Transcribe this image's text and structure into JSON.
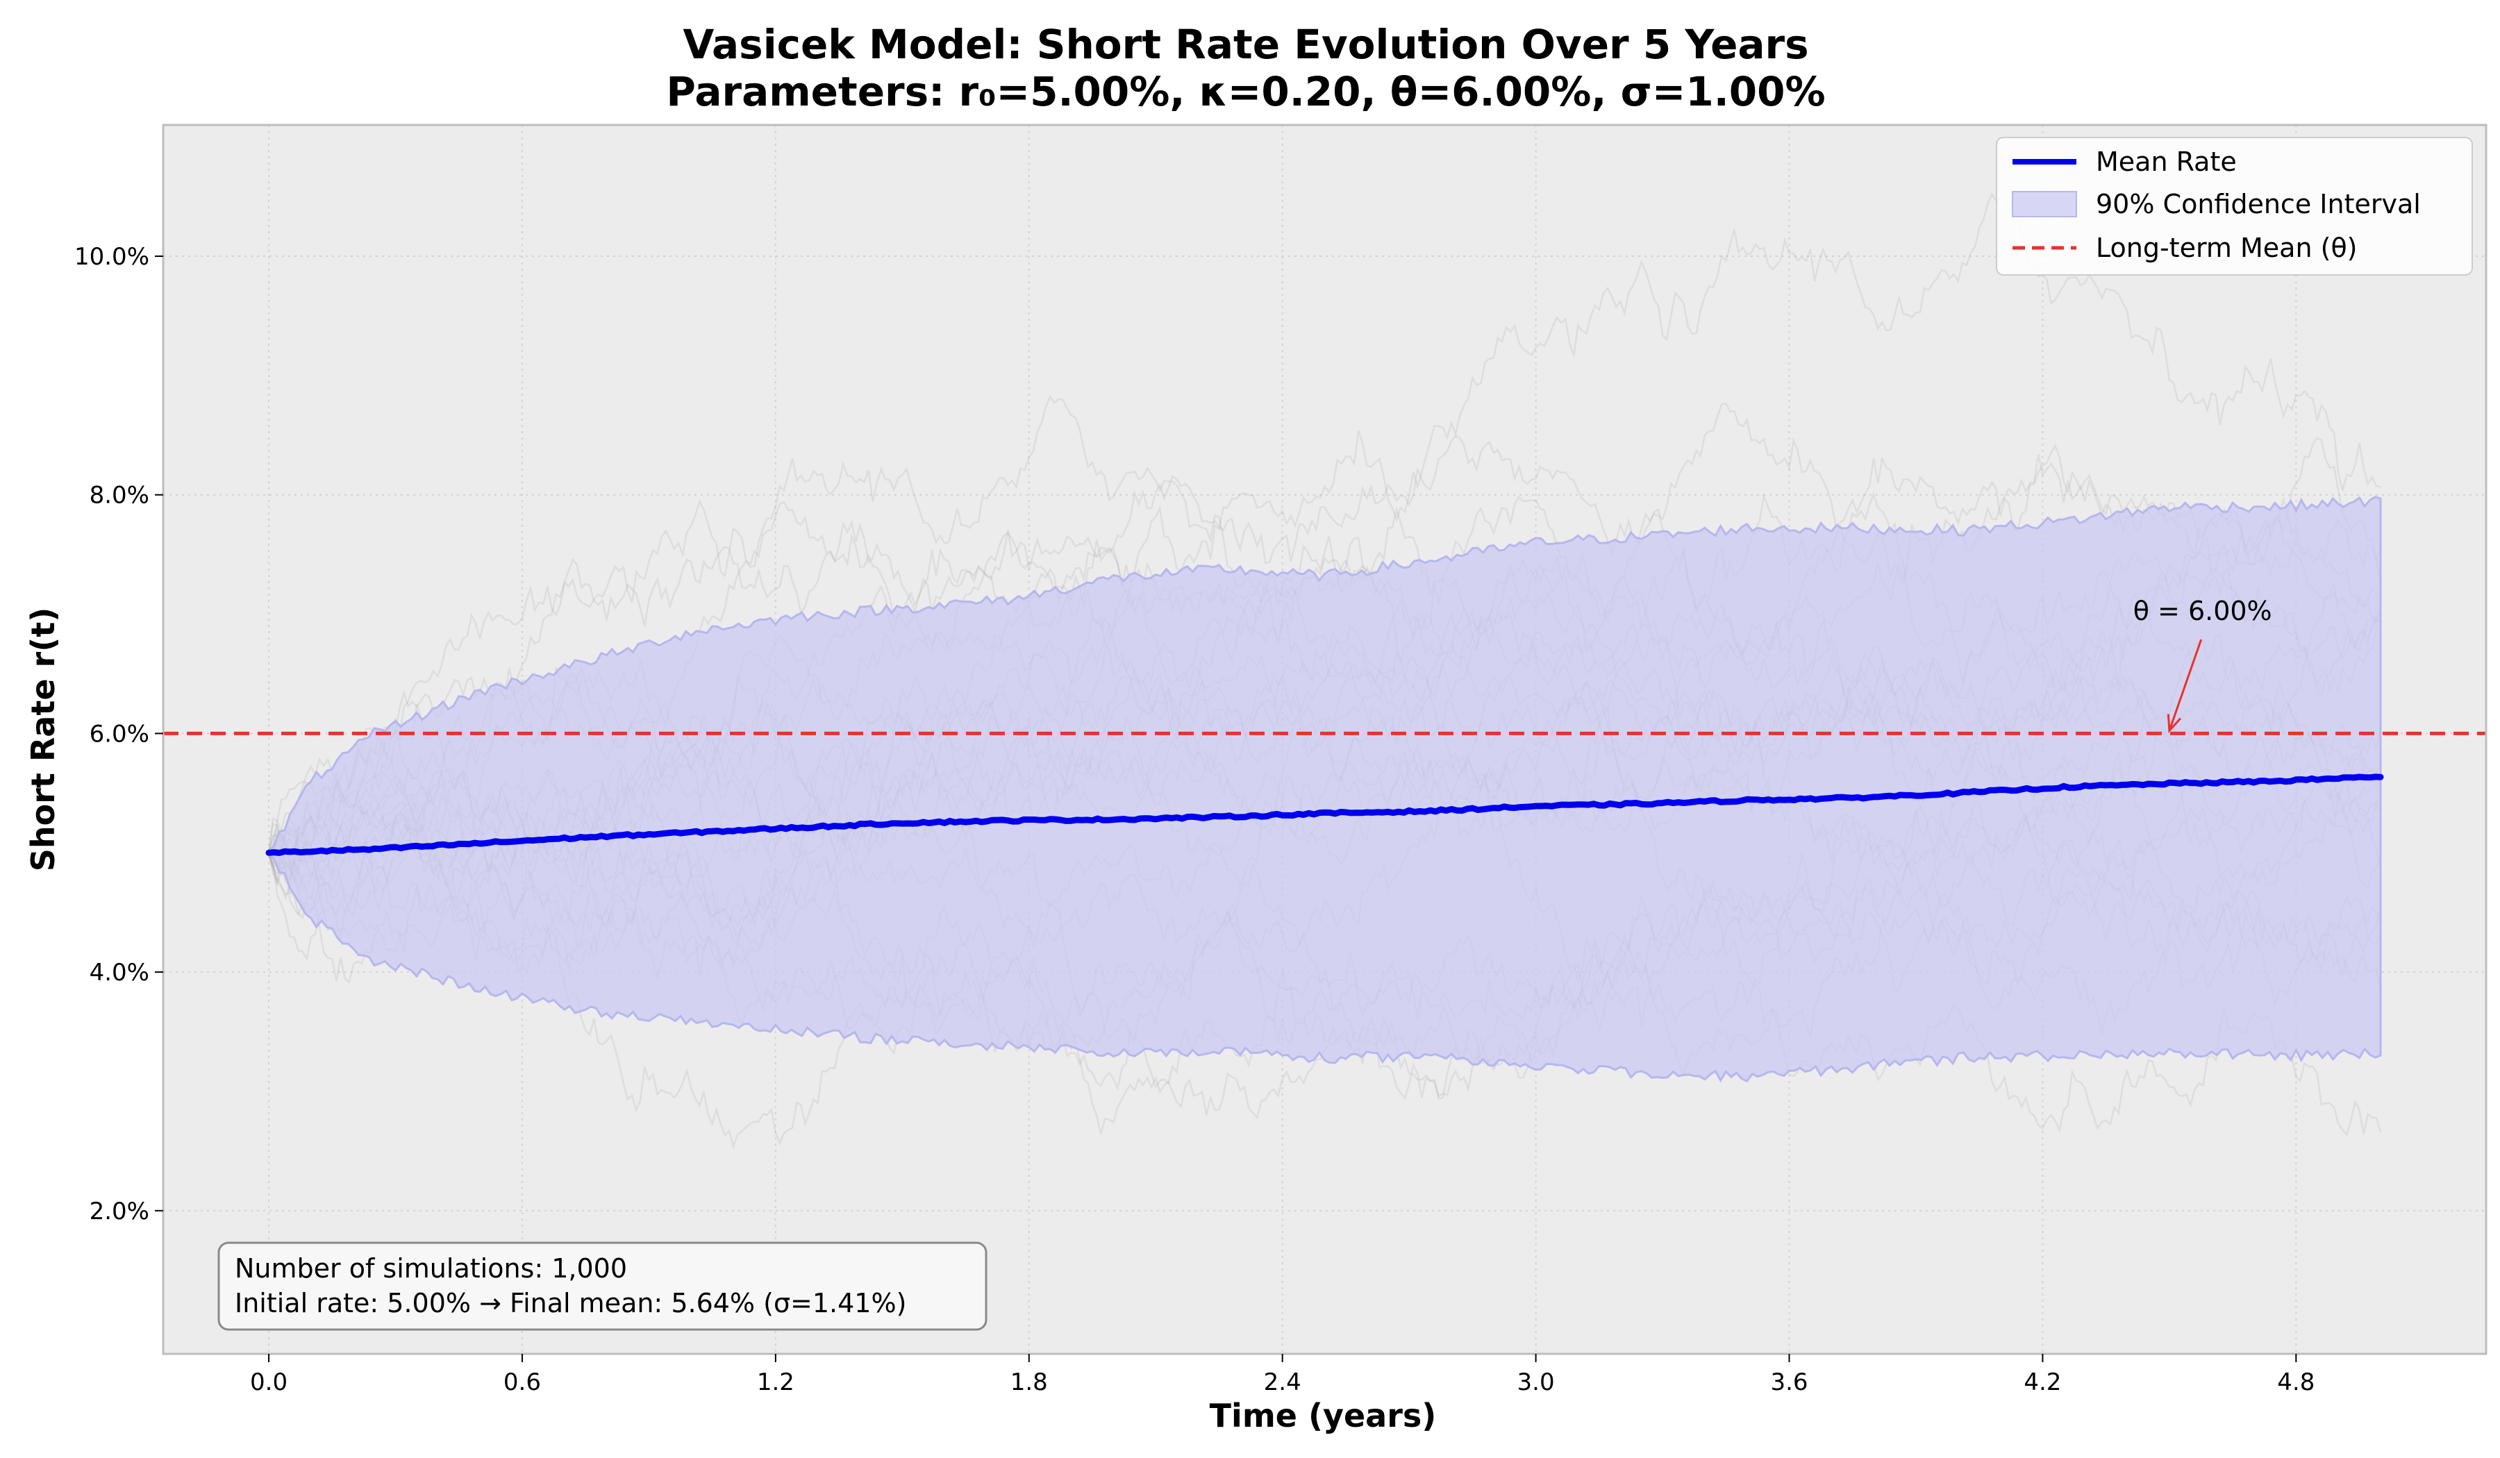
{
  "chart_data": {
    "type": "line",
    "title_line1": "Vasicek Model: Short Rate Evolution Over 5 Years",
    "title_line2": "Parameters: r₀=5.00%, κ=0.20, θ=6.00%, σ=1.00%",
    "xlabel": "Time (years)",
    "ylabel": "Short Rate r(t)",
    "xlim": [
      -0.25,
      5.25
    ],
    "ylim": [
      0.8,
      11.1
    ],
    "x_ticks": [
      0.0,
      0.6,
      1.2,
      1.8,
      2.4,
      3.0,
      3.6,
      4.2,
      4.8
    ],
    "x_tick_labels": [
      "0.0",
      "0.6",
      "1.2",
      "1.8",
      "2.4",
      "3.0",
      "3.6",
      "4.2",
      "4.8"
    ],
    "y_ticks": [
      2,
      4,
      6,
      8,
      10
    ],
    "y_tick_labels": [
      "2.0%",
      "4.0%",
      "6.0%",
      "8.0%",
      "10.0%"
    ],
    "grid": true,
    "legend_position": "top-right",
    "legend": [
      {
        "label": "Mean Rate",
        "kind": "line",
        "color": "#0000ee"
      },
      {
        "label": "90% Confidence Interval",
        "kind": "patch",
        "color": "#d5d5f0"
      },
      {
        "label": "Long-term Mean (θ)",
        "kind": "dashed",
        "color": "#e8322b"
      }
    ],
    "series": [
      {
        "name": "Mean Rate",
        "color": "#0000ee",
        "x": [
          0,
          0.25,
          0.5,
          0.75,
          1.0,
          1.25,
          1.5,
          1.75,
          2.0,
          2.25,
          2.5,
          2.75,
          3.0,
          3.25,
          3.5,
          3.75,
          4.0,
          4.25,
          4.5,
          4.75,
          5.0
        ],
        "y": [
          5.0,
          5.03,
          5.08,
          5.13,
          5.17,
          5.21,
          5.25,
          5.27,
          5.28,
          5.3,
          5.33,
          5.35,
          5.39,
          5.41,
          5.44,
          5.46,
          5.5,
          5.55,
          5.58,
          5.6,
          5.64
        ]
      },
      {
        "name": "90% Confidence Interval",
        "color": "#d5d5f0",
        "x": [
          0,
          0.1,
          0.25,
          0.5,
          0.75,
          1.0,
          1.25,
          1.5,
          1.75,
          2.0,
          2.25,
          2.5,
          2.75,
          3.0,
          3.25,
          3.5,
          3.75,
          4.0,
          4.25,
          4.5,
          4.75,
          5.0
        ],
        "upper": [
          5.0,
          5.6,
          6.0,
          6.35,
          6.6,
          6.85,
          6.98,
          7.05,
          7.12,
          7.3,
          7.38,
          7.32,
          7.45,
          7.6,
          7.65,
          7.72,
          7.72,
          7.7,
          7.78,
          7.9,
          7.9,
          7.95
        ],
        "lower": [
          5.0,
          4.45,
          4.1,
          3.85,
          3.68,
          3.58,
          3.5,
          3.42,
          3.38,
          3.32,
          3.35,
          3.28,
          3.3,
          3.22,
          3.15,
          3.12,
          3.2,
          3.28,
          3.3,
          3.32,
          3.3,
          3.32
        ]
      }
    ],
    "theta_line": {
      "y": 6.0,
      "color": "#e8322b"
    },
    "annotation": {
      "text": "θ = 6.00%",
      "text_x": 4.48,
      "text_y": 6.95,
      "arrow_x": 4.5,
      "arrow_y": 6.0,
      "color": "#e8322b"
    },
    "info_box": {
      "line1": "Number of simulations: 1,000",
      "line2": "Initial rate: 5.00% → Final mean: 5.64% (σ=1.41%)"
    },
    "colors": {
      "plot_background": "#ececec",
      "grid": "#d2d2d2",
      "sample_paths": "#8c8c8c"
    }
  }
}
